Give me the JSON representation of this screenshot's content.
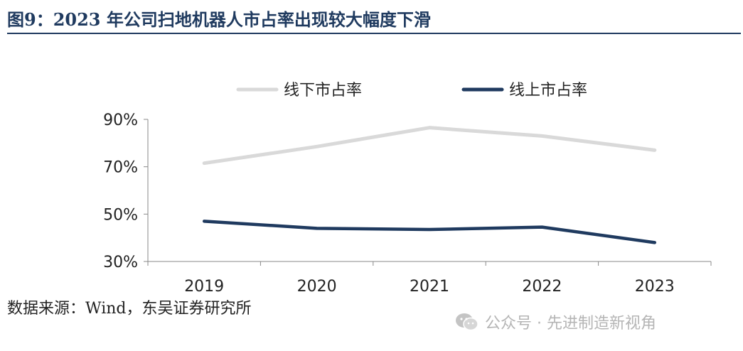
{
  "figure": {
    "title": "图9：2023 年公司扫地机器人市占率出现较大幅度下滑",
    "source": "数据来源：Wind，东吴证券研究所",
    "watermark": "公众号 · 先进制造新视角"
  },
  "chart_data": {
    "type": "line",
    "x": [
      "2019",
      "2020",
      "2021",
      "2022",
      "2023"
    ],
    "ylim": [
      30,
      90
    ],
    "yticks": [
      "30%",
      "50%",
      "70%",
      "90%"
    ],
    "ytick_values": [
      30,
      50,
      70,
      90
    ],
    "legend_position": "top",
    "series": [
      {
        "name": "线下市占率",
        "color": "#d9d9d9",
        "values": [
          71.5,
          78.5,
          86.5,
          83.0,
          77.0
        ]
      },
      {
        "name": "线上市占率",
        "color": "#1f3a5f",
        "values": [
          47.0,
          44.0,
          43.5,
          44.5,
          38.0
        ]
      }
    ]
  }
}
